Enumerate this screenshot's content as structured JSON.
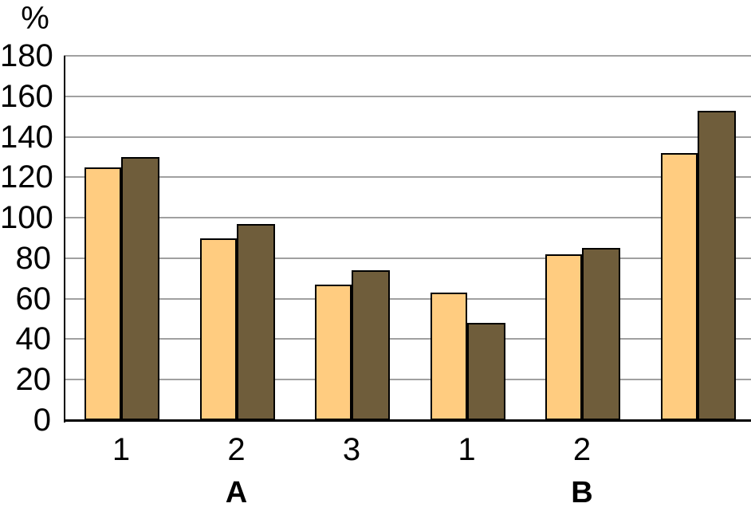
{
  "chart_data": {
    "type": "bar",
    "title": "",
    "ylabel": "%",
    "xlabel": "",
    "ylim": [
      0,
      180
    ],
    "ytick_step": 20,
    "ytick_labels": [
      "180",
      "160",
      "140",
      "120",
      "100",
      "80",
      "60",
      "40",
      "20",
      "0"
    ],
    "categories": [
      "1",
      "2",
      "3",
      "1",
      "2",
      ""
    ],
    "section_labels": [
      {
        "label": "A",
        "category_index": 1
      },
      {
        "label": "B",
        "category_index": 4
      }
    ],
    "series": [
      {
        "name": "light-orange",
        "color": "#FFCC80",
        "values": [
          125,
          90,
          67,
          63,
          82,
          132
        ]
      },
      {
        "name": "dark-brown",
        "color": "#6F5D3B",
        "values": [
          130,
          97,
          74,
          48,
          85,
          153
        ]
      }
    ],
    "grid": true,
    "legend": "none",
    "gridline_color": "#A0A0A0",
    "axis_color": "#000000",
    "bar_border_color": "#000000",
    "background_color": "#FFFFFF"
  }
}
